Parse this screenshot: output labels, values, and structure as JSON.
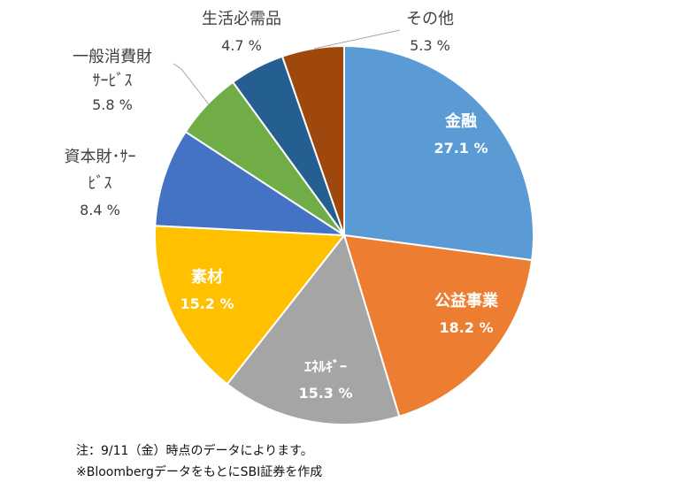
{
  "chart_data": {
    "type": "pie",
    "categories": [
      "金融",
      "公益事業",
      "エネルギー",
      "素材",
      "資本財･サービス",
      "一般消費財サービス",
      "生活必需品",
      "その他"
    ],
    "values": [
      27.1,
      18.2,
      15.3,
      15.2,
      8.4,
      5.8,
      4.7,
      5.3
    ],
    "unit": "%",
    "colors": [
      "#5B9BD5",
      "#ED7D31",
      "#A5A5A5",
      "#FFC000",
      "#4472C4",
      "#70AD47",
      "#255E91",
      "#9E480E"
    ],
    "slices": [
      {
        "name_lines": [
          "金融"
        ],
        "value_label": "27.1 %",
        "label_color": "#ffffff",
        "label_placement": "inside"
      },
      {
        "name_lines": [
          "公益事業"
        ],
        "value_label": "18.2 %",
        "label_color": "#ffffff",
        "label_placement": "inside"
      },
      {
        "name_lines": [
          "ｴﾈﾙｷﾞｰ"
        ],
        "value_label": "15.3 %",
        "label_color": "#ffffff",
        "label_placement": "inside"
      },
      {
        "name_lines": [
          "素材"
        ],
        "value_label": "15.2 %",
        "label_color": "#ffffff",
        "label_placement": "inside"
      },
      {
        "name_lines": [
          "資本財･ｻｰ",
          "ﾋﾞｽ"
        ],
        "value_label": "8.4 %",
        "label_color": "#404040",
        "label_placement": "outside"
      },
      {
        "name_lines": [
          "一般消費財",
          "ｻｰﾋﾞｽ"
        ],
        "value_label": "5.8 %",
        "label_color": "#404040",
        "label_placement": "outside-leader"
      },
      {
        "name_lines": [
          "生活必需品"
        ],
        "value_label": "4.7 %",
        "label_color": "#404040",
        "label_placement": "outside"
      },
      {
        "name_lines": [
          "その他"
        ],
        "value_label": "5.3 %",
        "label_color": "#404040",
        "label_placement": "outside-leader"
      }
    ],
    "start": "12 o'clock",
    "direction": "clockwise",
    "legend": "none"
  },
  "notes": {
    "line1": "注：9/11（金）時点のデータによります。",
    "line2": "※BloombergデータをもとにSBI証券を作成"
  }
}
